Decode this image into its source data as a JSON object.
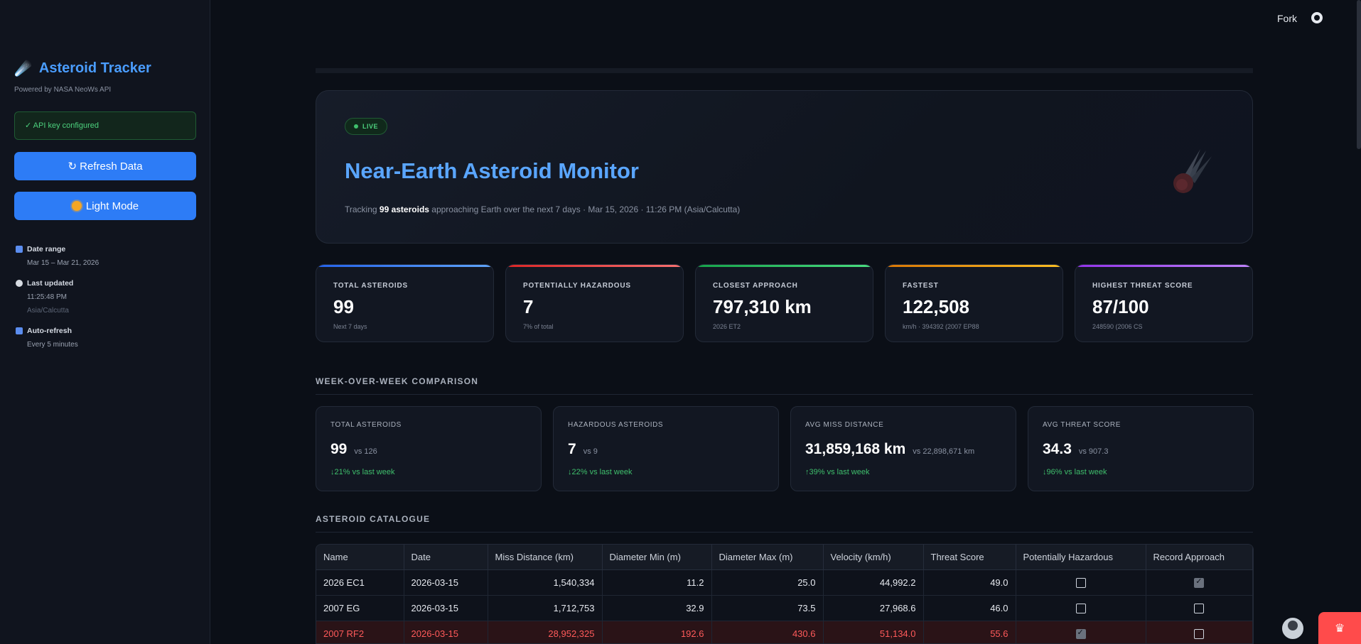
{
  "sidebar": {
    "logo_glyph": "☄️",
    "title": "Asteroid Tracker",
    "powered": "Powered by NASA NeoWs API",
    "api_status": "✓ API key configured",
    "refresh_label": "↻ Refresh Data",
    "light_label": "Light Mode",
    "date_range_label": "Date range",
    "date_range_value": "Mar 15 – Mar 21, 2026",
    "last_updated_label": "Last updated",
    "last_updated_time": "11:25:48 PM",
    "last_updated_tz": "Asia/Calcutta",
    "auto_refresh_label": "Auto-refresh",
    "auto_refresh_value": "Every 5 minutes",
    "colors": {
      "accent": "#4a9dff",
      "button": "#2d7cf6",
      "ok": "#4cd07d"
    }
  },
  "header": {
    "fork": "Fork",
    "github_icon": "github-icon"
  },
  "hero": {
    "badge": "LIVE",
    "title": "Near-Earth Asteroid Monitor",
    "subtitle_pre": "Tracking ",
    "subtitle_bold": "99 asteroids",
    "subtitle_post": " approaching Earth over the next 7 days  ·  Mar 15, 2026 · 11:26 PM (Asia/Calcutta)"
  },
  "stats": [
    {
      "label": "TOTAL ASTEROIDS",
      "value": "99",
      "sub": "Next 7 days",
      "color": "#3b82f6"
    },
    {
      "label": "POTENTIALLY HAZARDOUS",
      "value": "7",
      "sub": "7% of total",
      "color": "#ef4444"
    },
    {
      "label": "CLOSEST APPROACH",
      "value": "797,310 km",
      "sub": "2026 ET2",
      "color": "#22c55e"
    },
    {
      "label": "FASTEST",
      "value": "122,508",
      "sub": "km/h · 394392 (2007 EP88",
      "color": "#f59e0b"
    },
    {
      "label": "HIGHEST THREAT SCORE",
      "value": "87/100",
      "sub": "248590 (2006 CS",
      "color": "#a855f7"
    }
  ],
  "week_title": "WEEK-OVER-WEEK COMPARISON",
  "week": [
    {
      "label": "TOTAL ASTEROIDS",
      "value": "99",
      "vs": "vs 126",
      "change": "↓21% vs last week"
    },
    {
      "label": "HAZARDOUS ASTEROIDS",
      "value": "7",
      "vs": "vs 9",
      "change": "↓22% vs last week"
    },
    {
      "label": "AVG MISS DISTANCE",
      "value": "31,859,168 km",
      "vs": "vs 22,898,671 km",
      "change": "↑39% vs last week"
    },
    {
      "label": "AVG THREAT SCORE",
      "value": "34.3",
      "vs": "vs 907.3",
      "change": "↓96% vs last week"
    }
  ],
  "catalogue_title": "ASTEROID CATALOGUE",
  "table": {
    "columns": [
      "Name",
      "Date",
      "Miss Distance (km)",
      "Diameter Min (m)",
      "Diameter Max (m)",
      "Velocity (km/h)",
      "Threat Score",
      "Potentially Hazardous",
      "Record Approach"
    ],
    "rows": [
      {
        "name": "2026 EC1",
        "date": "2026-03-15",
        "miss": "1,540,334",
        "dmin": "11.2",
        "dmax": "25.0",
        "vel": "44,992.2",
        "threat": "49.0",
        "hazard": false,
        "record": true
      },
      {
        "name": "2007 EG",
        "date": "2026-03-15",
        "miss": "1,712,753",
        "dmin": "32.9",
        "dmax": "73.5",
        "vel": "27,968.6",
        "threat": "46.0",
        "hazard": false,
        "record": false
      },
      {
        "name": "2007 RF2",
        "date": "2026-03-15",
        "miss": "28,952,325",
        "dmin": "192.6",
        "dmax": "430.6",
        "vel": "51,134.0",
        "threat": "55.6",
        "hazard": true,
        "record": false
      }
    ]
  }
}
